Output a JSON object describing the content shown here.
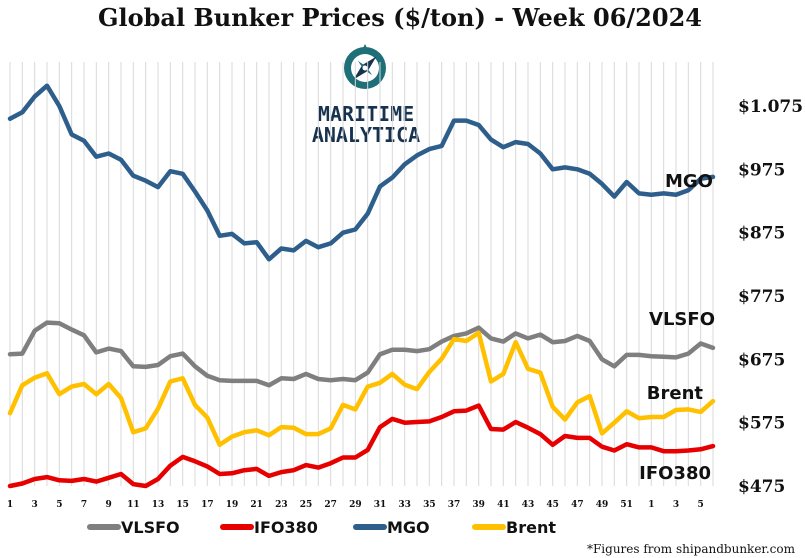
{
  "chart_data": {
    "type": "line",
    "title": "Global Bunker Prices ($/ton) -  Week 06/2024",
    "xlabel": "",
    "ylabel": "",
    "ylim": [
      475,
      1125
    ],
    "y_ticks": [
      "$475",
      "$575",
      "$675",
      "$775",
      "$875",
      "$975",
      "$1.075"
    ],
    "x_tick_labels": [
      "1",
      "3",
      "5",
      "7",
      "9",
      "11",
      "13",
      "15",
      "17",
      "19",
      "21",
      "23",
      "25",
      "27",
      "29",
      "31",
      "33",
      "35",
      "37",
      "39",
      "41",
      "43",
      "45",
      "47",
      "49",
      "51",
      "1",
      "3",
      "5"
    ],
    "x": [
      1,
      2,
      3,
      4,
      5,
      6,
      7,
      8,
      9,
      10,
      11,
      12,
      13,
      14,
      15,
      16,
      17,
      18,
      19,
      20,
      21,
      22,
      23,
      24,
      25,
      26,
      27,
      28,
      29,
      30,
      31,
      32,
      33,
      34,
      35,
      36,
      37,
      38,
      39,
      40,
      41,
      42,
      43,
      44,
      45,
      46,
      47,
      48,
      49,
      50,
      51,
      52,
      1,
      2,
      3,
      4,
      5,
      6
    ],
    "grid": "vertical",
    "series": [
      {
        "name": "MGO",
        "color": "#2e5f8c",
        "values": [
          1055,
          1065,
          1090,
          1107,
          1075,
          1030,
          1020,
          995,
          1000,
          990,
          965,
          957,
          947,
          972,
          968,
          940,
          910,
          870,
          873,
          858,
          860,
          833,
          850,
          847,
          862,
          852,
          858,
          875,
          880,
          905,
          948,
          962,
          983,
          997,
          1007,
          1012,
          1052,
          1052,
          1045,
          1022,
          1010,
          1018,
          1015,
          1000,
          975,
          978,
          975,
          968,
          952,
          932,
          955,
          937,
          935,
          937,
          935,
          942,
          960,
          963
        ]
      },
      {
        "name": "VLSFO",
        "color": "#7f7f7f",
        "values": [
          683,
          684,
          720,
          733,
          732,
          722,
          713,
          686,
          692,
          688,
          664,
          663,
          666,
          680,
          684,
          664,
          649,
          642,
          641,
          641,
          641,
          634,
          645,
          644,
          652,
          644,
          642,
          644,
          642,
          654,
          683,
          690,
          690,
          688,
          691,
          703,
          712,
          716,
          725,
          708,
          703,
          716,
          708,
          714,
          702,
          704,
          712,
          704,
          675,
          664,
          682,
          682,
          680,
          679,
          678,
          684,
          700,
          693
        ]
      },
      {
        "name": "IFO380",
        "color": "#e60000",
        "values": [
          475,
          479,
          486,
          489,
          484,
          483,
          486,
          482,
          488,
          494,
          478,
          475,
          486,
          507,
          521,
          514,
          506,
          494,
          495,
          500,
          502,
          491,
          497,
          500,
          508,
          504,
          511,
          520,
          520,
          532,
          568,
          581,
          575,
          576,
          577,
          584,
          593,
          594,
          602,
          565,
          564,
          576,
          567,
          557,
          540,
          554,
          551,
          551,
          537,
          531,
          541,
          536,
          536,
          530,
          530,
          531,
          533,
          538
        ]
      },
      {
        "name": "Brent",
        "color": "#ffc000",
        "values": [
          590,
          634,
          646,
          653,
          620,
          632,
          636,
          620,
          636,
          614,
          560,
          566,
          597,
          640,
          645,
          603,
          583,
          540,
          553,
          560,
          563,
          555,
          568,
          567,
          557,
          557,
          566,
          603,
          596,
          632,
          638,
          652,
          635,
          628,
          655,
          676,
          707,
          704,
          717,
          640,
          652,
          702,
          660,
          654,
          600,
          580,
          607,
          617,
          558,
          575,
          593,
          582,
          584,
          584,
          595,
          596,
          592,
          609
        ]
      }
    ]
  },
  "series_labels": [
    "MGO",
    "VLSFO",
    "Brent",
    "IFO380"
  ],
  "legend": {
    "items": [
      {
        "label": "VLSFO",
        "color": "#7f7f7f"
      },
      {
        "label": "IFO380",
        "color": "#e60000"
      },
      {
        "label": "MGO",
        "color": "#2e5f8c"
      },
      {
        "label": "Brent",
        "color": "#ffc000"
      }
    ]
  },
  "logo": {
    "line1": "MARITIME",
    "line2": "ANALYTICA"
  },
  "footnote": "*Figures from shipandbunker.com",
  "colors": {
    "grid": "#d9d9d9",
    "logo_teal": "#1f6f78",
    "logo_navy": "#16324f"
  }
}
